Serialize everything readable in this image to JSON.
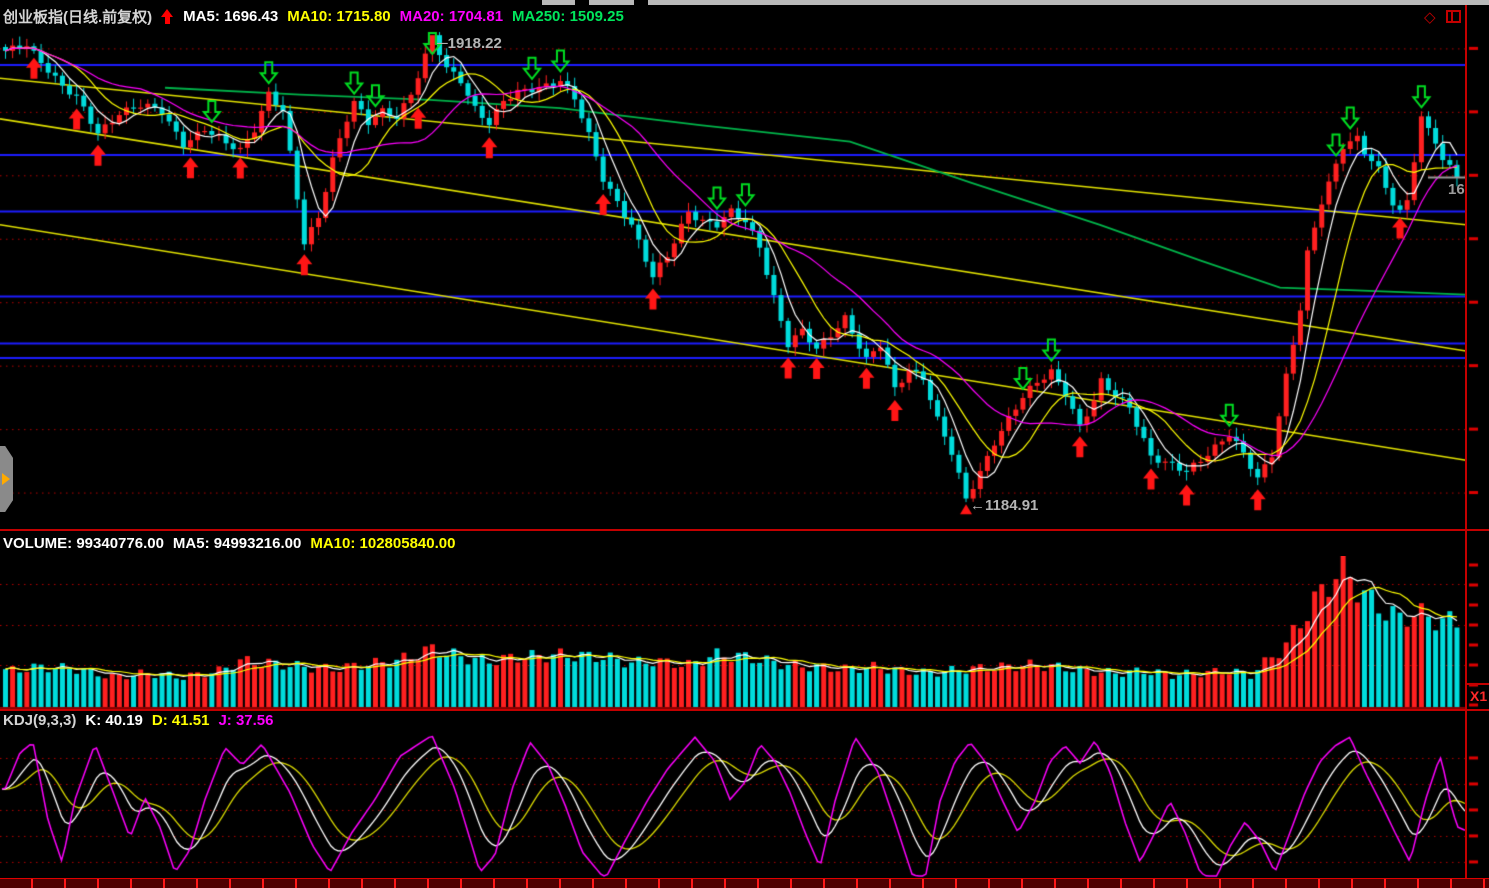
{
  "header": {
    "title": "创业板指(日线.前复权)",
    "mas": [
      {
        "text": "MA5: 1696.43",
        "color": "#ffffff"
      },
      {
        "text": "MA10: 1715.80",
        "color": "#ffff00"
      },
      {
        "text": "MA20: 1704.81",
        "color": "#ff00ff"
      },
      {
        "text": "MA250: 1509.25",
        "color": "#00e65c"
      }
    ],
    "icons": {
      "diamond": "◇"
    }
  },
  "price_pane": {
    "high_annotation": "─1918.22",
    "low_annotation": "←1184.91",
    "current_price_label": "16"
  },
  "volume_pane": {
    "items": [
      {
        "text": "VOLUME: 99340776.00",
        "color": "#ffffff"
      },
      {
        "text": "MA5: 94993216.00",
        "color": "#ffffff"
      },
      {
        "text": "MA10: 102805840.00",
        "color": "#ffff00"
      }
    ]
  },
  "kdj_pane": {
    "title": "KDJ(9,3,3)",
    "items": [
      {
        "text": "K: 40.19",
        "color": "#ffffff"
      },
      {
        "text": "D: 41.51",
        "color": "#ffff00"
      },
      {
        "text": "J: 37.56",
        "color": "#ff00ff"
      }
    ]
  },
  "right_axis": {
    "x1_label": "X1"
  },
  "colors": {
    "up": "#ff2020",
    "down": "#00dcdc",
    "grid_dotted": "#b80000",
    "blue_level": "#1c1cff",
    "trend_yellow": "#e0e000",
    "ma250_green": "#00b44a",
    "border_red": "#c40000",
    "price_line_gray": "#9a9a9a"
  },
  "chart_data": [
    {
      "type": "candlestick",
      "name": "创业板指 daily, forward-adjusted",
      "bars": 205,
      "price_range": [
        1144,
        1929
      ],
      "grid_prices": [
        1900,
        1800,
        1700,
        1600,
        1500,
        1400,
        1300,
        1200
      ],
      "blue_levels": [
        1874,
        1732,
        1643,
        1509,
        1435,
        1412
      ],
      "trendlines": [
        {
          "from": [
            0,
            1853
          ],
          "to": [
            1466,
            1622
          ]
        },
        {
          "from": [
            0,
            1789
          ],
          "to": [
            1466,
            1423
          ]
        },
        {
          "from": [
            0,
            1622
          ],
          "to": [
            1466,
            1251
          ]
        }
      ],
      "ma250_anchors": [
        [
          165,
          1838
        ],
        [
          300,
          1827
        ],
        [
          430,
          1819
        ],
        [
          560,
          1806
        ],
        [
          700,
          1779
        ],
        [
          850,
          1753
        ],
        [
          970,
          1689
        ],
        [
          1100,
          1622
        ],
        [
          1200,
          1566
        ],
        [
          1280,
          1523
        ],
        [
          1350,
          1519
        ],
        [
          1466,
          1512
        ]
      ],
      "close_anchors": [
        [
          0,
          1893
        ],
        [
          3,
          1908
        ],
        [
          6,
          1868
        ],
        [
          8,
          1838
        ],
        [
          10,
          1820
        ],
        [
          13,
          1768
        ],
        [
          16,
          1800
        ],
        [
          19,
          1808
        ],
        [
          22,
          1800
        ],
        [
          25,
          1752
        ],
        [
          28,
          1772
        ],
        [
          31,
          1748
        ],
        [
          33,
          1740
        ],
        [
          35,
          1776
        ],
        [
          37,
          1830
        ],
        [
          39,
          1800
        ],
        [
          42,
          1592
        ],
        [
          44,
          1635
        ],
        [
          46,
          1728
        ],
        [
          48,
          1790
        ],
        [
          49,
          1814
        ],
        [
          51,
          1780
        ],
        [
          53,
          1800
        ],
        [
          55,
          1795
        ],
        [
          57,
          1830
        ],
        [
          60,
          1916
        ],
        [
          62,
          1866
        ],
        [
          64,
          1850
        ],
        [
          66,
          1808
        ],
        [
          68,
          1784
        ],
        [
          70,
          1815
        ],
        [
          72,
          1828
        ],
        [
          75,
          1840
        ],
        [
          78,
          1852
        ],
        [
          80,
          1820
        ],
        [
          82,
          1760
        ],
        [
          84,
          1694
        ],
        [
          86,
          1660
        ],
        [
          88,
          1624
        ],
        [
          91,
          1538
        ],
        [
          93,
          1570
        ],
        [
          96,
          1645
        ],
        [
          98,
          1630
        ],
        [
          100,
          1622
        ],
        [
          102,
          1640
        ],
        [
          104,
          1626
        ],
        [
          106,
          1590
        ],
        [
          108,
          1510
        ],
        [
          110,
          1434
        ],
        [
          112,
          1452
        ],
        [
          114,
          1424
        ],
        [
          116,
          1450
        ],
        [
          118,
          1478
        ],
        [
          121,
          1408
        ],
        [
          123,
          1430
        ],
        [
          125,
          1362
        ],
        [
          127,
          1396
        ],
        [
          129,
          1384
        ],
        [
          131,
          1314
        ],
        [
          133,
          1260
        ],
        [
          135,
          1188
        ],
        [
          137,
          1234
        ],
        [
          139,
          1282
        ],
        [
          141,
          1316
        ],
        [
          143,
          1348
        ],
        [
          145,
          1372
        ],
        [
          147,
          1392
        ],
        [
          149,
          1360
        ],
        [
          151,
          1304
        ],
        [
          153,
          1342
        ],
        [
          154,
          1372
        ],
        [
          156,
          1352
        ],
        [
          158,
          1338
        ],
        [
          161,
          1258
        ],
        [
          163,
          1244
        ],
        [
          166,
          1232
        ],
        [
          168,
          1254
        ],
        [
          170,
          1274
        ],
        [
          172,
          1292
        ],
        [
          174,
          1258
        ],
        [
          176,
          1220
        ],
        [
          178,
          1262
        ],
        [
          180,
          1386
        ],
        [
          182,
          1490
        ],
        [
          183,
          1575
        ],
        [
          185,
          1655
        ],
        [
          186,
          1684
        ],
        [
          188,
          1748
        ],
        [
          190,
          1762
        ],
        [
          191,
          1740
        ],
        [
          193,
          1708
        ],
        [
          195,
          1652
        ],
        [
          196,
          1638
        ],
        [
          197,
          1660
        ],
        [
          199,
          1792
        ],
        [
          200,
          1776
        ],
        [
          201,
          1758
        ],
        [
          202,
          1724
        ],
        [
          203,
          1712
        ],
        [
          204,
          1698
        ]
      ],
      "buy_signal_bars": [
        4,
        10,
        13,
        26,
        33,
        42,
        58,
        68,
        84,
        91,
        110,
        114,
        121,
        125,
        151,
        161,
        166,
        176,
        196
      ],
      "sell_signal_bars": [
        29,
        37,
        49,
        52,
        60,
        74,
        78,
        100,
        104,
        143,
        147,
        172,
        187,
        189,
        199
      ],
      "high_label": {
        "bar": 60,
        "price": 1918.22
      },
      "low_label": {
        "bar": 135,
        "price": 1184.91
      },
      "last_close": 1696.43,
      "ma_values": {
        "MA5": 1696.43,
        "MA10": 1715.8,
        "MA20": 1704.81,
        "MA250": 1509.25
      }
    },
    {
      "type": "bar",
      "name": "volume",
      "volume": 99340776.0,
      "ma5": 94993216.0,
      "ma10": 102805840.0,
      "grid_heights": [
        42,
        82,
        123
      ],
      "axis_tick_heights": [
        0,
        20,
        40,
        60,
        80,
        100,
        120,
        140
      ],
      "height_anchors": [
        [
          0,
          36
        ],
        [
          5,
          40
        ],
        [
          10,
          38
        ],
        [
          15,
          30
        ],
        [
          20,
          34
        ],
        [
          25,
          30
        ],
        [
          30,
          36
        ],
        [
          33,
          46
        ],
        [
          37,
          44
        ],
        [
          42,
          40
        ],
        [
          46,
          38
        ],
        [
          50,
          42
        ],
        [
          55,
          46
        ],
        [
          60,
          58
        ],
        [
          64,
          50
        ],
        [
          68,
          46
        ],
        [
          72,
          50
        ],
        [
          78,
          52
        ],
        [
          84,
          50
        ],
        [
          88,
          44
        ],
        [
          91,
          46
        ],
        [
          96,
          42
        ],
        [
          100,
          52
        ],
        [
          104,
          50
        ],
        [
          110,
          42
        ],
        [
          114,
          40
        ],
        [
          118,
          38
        ],
        [
          122,
          40
        ],
        [
          126,
          36
        ],
        [
          130,
          34
        ],
        [
          135,
          38
        ],
        [
          140,
          40
        ],
        [
          144,
          42
        ],
        [
          148,
          40
        ],
        [
          152,
          36
        ],
        [
          156,
          34
        ],
        [
          160,
          36
        ],
        [
          164,
          32
        ],
        [
          168,
          34
        ],
        [
          172,
          36
        ],
        [
          175,
          32
        ],
        [
          178,
          50
        ],
        [
          180,
          62
        ],
        [
          182,
          85
        ],
        [
          184,
          105
        ],
        [
          186,
          125
        ],
        [
          188,
          140
        ],
        [
          190,
          120
        ],
        [
          192,
          105
        ],
        [
          194,
          96
        ],
        [
          196,
          88
        ],
        [
          198,
          94
        ],
        [
          200,
          90
        ],
        [
          202,
          86
        ],
        [
          204,
          85
        ]
      ]
    },
    {
      "type": "line",
      "name": "KDJ(9,3,3)",
      "k_last": 40.19,
      "d_last": 41.51,
      "j_last": 37.56,
      "grid_values": [
        80,
        65,
        50,
        35,
        20
      ],
      "j_anchors": [
        [
          5,
          62
        ],
        [
          20,
          83
        ],
        [
          33,
          89
        ],
        [
          48,
          44
        ],
        [
          62,
          20
        ],
        [
          75,
          56
        ],
        [
          95,
          88
        ],
        [
          112,
          62
        ],
        [
          130,
          34
        ],
        [
          145,
          57
        ],
        [
          160,
          40
        ],
        [
          175,
          14
        ],
        [
          190,
          27
        ],
        [
          205,
          56
        ],
        [
          225,
          86
        ],
        [
          242,
          76
        ],
        [
          262,
          88
        ],
        [
          290,
          60
        ],
        [
          312,
          30
        ],
        [
          330,
          14
        ],
        [
          352,
          37
        ],
        [
          375,
          56
        ],
        [
          400,
          81
        ],
        [
          432,
          93
        ],
        [
          455,
          62
        ],
        [
          480,
          14
        ],
        [
          495,
          24
        ],
        [
          512,
          62
        ],
        [
          530,
          89
        ],
        [
          548,
          76
        ],
        [
          565,
          53
        ],
        [
          582,
          26
        ],
        [
          605,
          10
        ],
        [
          625,
          32
        ],
        [
          648,
          56
        ],
        [
          668,
          74
        ],
        [
          695,
          92
        ],
        [
          715,
          78
        ],
        [
          730,
          56
        ],
        [
          745,
          66
        ],
        [
          760,
          88
        ],
        [
          775,
          78
        ],
        [
          790,
          60
        ],
        [
          805,
          37
        ],
        [
          820,
          17
        ],
        [
          835,
          55
        ],
        [
          855,
          92
        ],
        [
          878,
          72
        ],
        [
          895,
          43
        ],
        [
          912,
          13
        ],
        [
          925,
          10
        ],
        [
          940,
          55
        ],
        [
          955,
          78
        ],
        [
          970,
          89
        ],
        [
          985,
          78
        ],
        [
          1002,
          56
        ],
        [
          1018,
          37
        ],
        [
          1035,
          55
        ],
        [
          1050,
          78
        ],
        [
          1065,
          87
        ],
        [
          1080,
          77
        ],
        [
          1095,
          90
        ],
        [
          1110,
          72
        ],
        [
          1125,
          43
        ],
        [
          1140,
          20
        ],
        [
          1155,
          37
        ],
        [
          1170,
          55
        ],
        [
          1185,
          37
        ],
        [
          1200,
          14
        ],
        [
          1215,
          9
        ],
        [
          1230,
          29
        ],
        [
          1245,
          43
        ],
        [
          1260,
          32
        ],
        [
          1275,
          14
        ],
        [
          1290,
          37
        ],
        [
          1305,
          60
        ],
        [
          1320,
          78
        ],
        [
          1335,
          87
        ],
        [
          1350,
          92
        ],
        [
          1365,
          72
        ],
        [
          1380,
          55
        ],
        [
          1395,
          37
        ],
        [
          1410,
          20
        ],
        [
          1425,
          55
        ],
        [
          1440,
          81
        ],
        [
          1445,
          70
        ],
        [
          1452,
          50
        ],
        [
          1458,
          40
        ],
        [
          1466,
          38
        ]
      ]
    }
  ]
}
